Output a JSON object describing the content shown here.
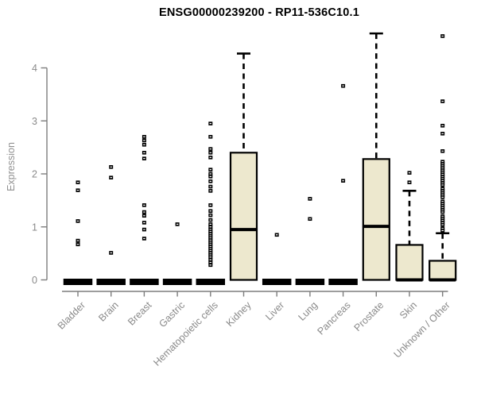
{
  "page": {
    "background": "#ffffff"
  },
  "chart_data": {
    "type": "boxplot",
    "title": "ENSG00000239200 - RP11-536C10.1",
    "ylabel": "Expression",
    "yticks": [
      0,
      1,
      2,
      3,
      4
    ],
    "ylim": [
      0,
      4.75
    ],
    "grid": false,
    "legend": "none",
    "box_fill": "#EDE8CE",
    "box_stroke": "#000000",
    "axis_color": "#7d7d7d",
    "label_color": "#8a8a8a",
    "categories": [
      "Bladder",
      "Brain",
      "Breast",
      "Gastric",
      "Hematopoietic cells",
      "Kidney",
      "Liver",
      "Lung",
      "Pancreas",
      "Prostate",
      "Skin",
      "Unknown / Other"
    ],
    "series": [
      {
        "name": "Bladder",
        "q1": 0,
        "median": 0,
        "q3": 0,
        "whisker_low": 0,
        "whisker_high": 0,
        "outliers": [
          1.84,
          1.69,
          1.11,
          0.74,
          0.67
        ]
      },
      {
        "name": "Brain",
        "q1": 0,
        "median": 0,
        "q3": 0,
        "whisker_low": 0,
        "whisker_high": 0,
        "outliers": [
          2.13,
          1.93,
          0.51
        ]
      },
      {
        "name": "Breast",
        "q1": 0,
        "median": 0,
        "q3": 0,
        "whisker_low": 0,
        "whisker_high": 0,
        "outliers": [
          2.7,
          2.63,
          2.55,
          2.4,
          2.29,
          1.41,
          1.28,
          1.21,
          1.08,
          0.95,
          0.78
        ]
      },
      {
        "name": "Gastric",
        "q1": 0,
        "median": 0,
        "q3": 0,
        "whisker_low": 0,
        "whisker_high": 0,
        "outliers": [
          1.05
        ]
      },
      {
        "name": "Hematopoietic cells",
        "q1": 0,
        "median": 0,
        "q3": 0,
        "whisker_low": 0,
        "whisker_high": 0,
        "outliers": [
          2.95,
          2.7,
          2.47,
          2.4,
          2.31,
          2.08,
          2.0,
          1.95,
          1.86,
          1.76,
          1.68,
          1.41,
          1.3,
          1.22,
          1.13,
          1.05,
          1.0,
          0.95,
          0.91,
          0.87,
          0.83,
          0.79,
          0.75,
          0.71,
          0.67,
          0.63,
          0.59,
          0.55,
          0.51,
          0.47,
          0.43,
          0.38,
          0.33,
          0.28
        ]
      },
      {
        "name": "Kidney",
        "q1": 0,
        "median": 0.95,
        "q3": 2.4,
        "whisker_low": 0,
        "whisker_high": 4.27,
        "outliers": []
      },
      {
        "name": "Liver",
        "q1": 0,
        "median": 0,
        "q3": 0,
        "whisker_low": 0,
        "whisker_high": 0,
        "outliers": [
          0.85
        ]
      },
      {
        "name": "Lung",
        "q1": 0,
        "median": 0,
        "q3": 0,
        "whisker_low": 0,
        "whisker_high": 0,
        "outliers": [
          1.53,
          1.15
        ]
      },
      {
        "name": "Pancreas",
        "q1": 0,
        "median": 0,
        "q3": 0,
        "whisker_low": 0,
        "whisker_high": 0,
        "outliers": [
          3.66,
          1.87
        ]
      },
      {
        "name": "Prostate",
        "q1": 0,
        "median": 1.01,
        "q3": 2.28,
        "whisker_low": 0,
        "whisker_high": 4.65,
        "outliers": []
      },
      {
        "name": "Skin",
        "q1": 0,
        "median": 0,
        "q3": 0.66,
        "whisker_low": 0,
        "whisker_high": 1.68,
        "outliers": [
          2.02,
          1.84
        ]
      },
      {
        "name": "Unknown / Other",
        "q1": 0,
        "median": 0,
        "q3": 0.36,
        "whisker_low": 0,
        "whisker_high": 0.88,
        "outliers": [
          4.6,
          3.37,
          2.91,
          2.76,
          2.43,
          2.23,
          2.19,
          2.15,
          2.11,
          2.07,
          2.03,
          1.99,
          1.95,
          1.91,
          1.87,
          1.83,
          1.79,
          1.72,
          1.68,
          1.64,
          1.6,
          1.56,
          1.48,
          1.44,
          1.4,
          1.36,
          1.32,
          1.28,
          1.2,
          1.16,
          1.12,
          1.08,
          1.04,
          0.97,
          0.93
        ]
      }
    ]
  }
}
